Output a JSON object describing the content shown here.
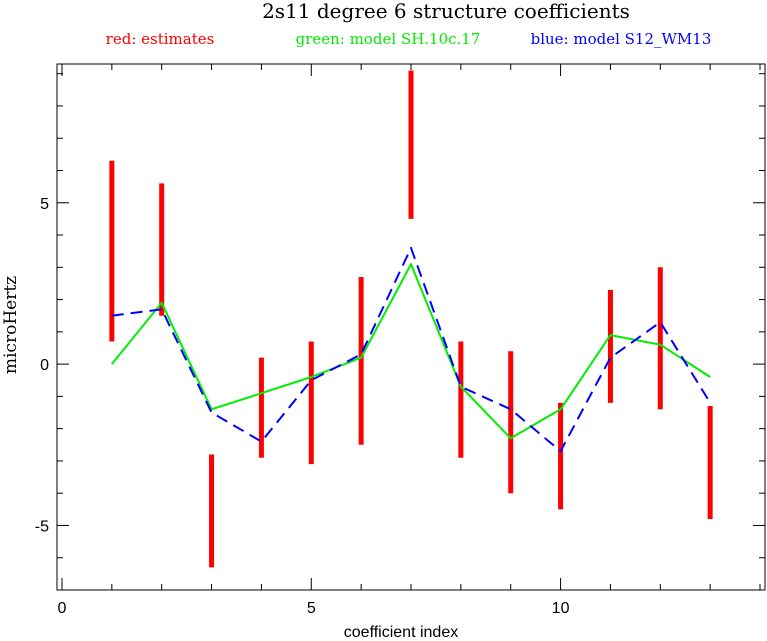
{
  "chart_data": {
    "type": "line",
    "title": "2s11 degree 6 structure coefficients",
    "xlabel": "coefficient index",
    "ylabel": "microHertz",
    "xlim": [
      -0.1,
      14.1
    ],
    "ylim": [
      -7.0,
      9.3
    ],
    "x_ticks": [
      0,
      5,
      10
    ],
    "y_ticks": [
      -5,
      0,
      5
    ],
    "x_minor_step": 1,
    "y_minor_step": 1,
    "grid": false,
    "legend_position": "top",
    "legend": [
      {
        "label": "red: estimates",
        "color": "#ff0000"
      },
      {
        "label": "green: model SH.10c.17",
        "color": "#00ee00"
      },
      {
        "label": "blue: model S12_WM13",
        "color": "#0000ff"
      }
    ],
    "series": [
      {
        "kind": "error_bars",
        "color": "#ff0000",
        "x": [
          1,
          2,
          3,
          4,
          5,
          6,
          7,
          8,
          9,
          10,
          11,
          12,
          13
        ],
        "low": [
          0.7,
          1.5,
          -6.3,
          -2.9,
          -3.1,
          -2.5,
          4.5,
          -2.9,
          -4.0,
          -4.5,
          -1.2,
          -1.4,
          -4.8
        ],
        "high": [
          6.3,
          5.6,
          -2.8,
          0.2,
          0.7,
          2.7,
          9.1,
          0.7,
          0.4,
          -1.2,
          2.3,
          3.0,
          -1.3
        ]
      },
      {
        "kind": "line",
        "color": "#00ee00",
        "x": [
          1,
          2,
          3,
          4,
          5,
          6,
          7,
          8,
          9,
          10,
          11,
          12,
          13
        ],
        "values": [
          0.0,
          1.9,
          -1.4,
          -0.9,
          -0.4,
          0.2,
          3.1,
          -0.7,
          -2.3,
          -1.4,
          0.9,
          0.6,
          -0.4
        ]
      },
      {
        "kind": "dashed_line",
        "color": "#0000ff",
        "x": [
          1,
          2,
          3,
          4,
          5,
          6,
          7,
          8,
          9,
          10,
          11,
          12,
          13
        ],
        "values": [
          1.5,
          1.7,
          -1.5,
          -2.4,
          -0.5,
          0.3,
          3.6,
          -0.7,
          -1.4,
          -2.7,
          0.2,
          1.3,
          -1.2
        ]
      }
    ]
  }
}
